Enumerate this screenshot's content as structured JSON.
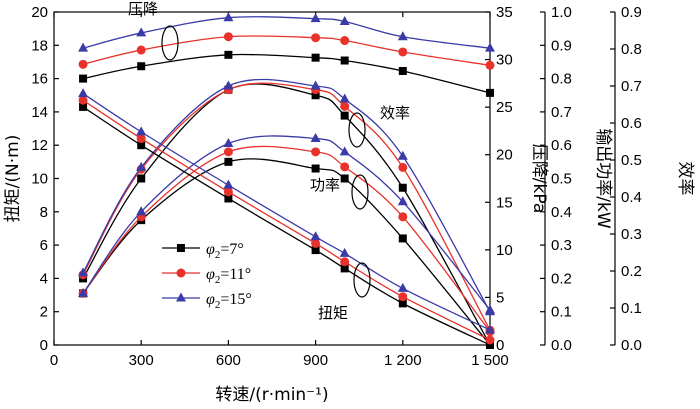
{
  "chart_data": {
    "type": "line",
    "x_axis": {
      "label": "转速/(r·min⁻¹)",
      "ticks": [
        0,
        300,
        600,
        900,
        1200,
        1500
      ],
      "tick_labels": [
        "0",
        "300",
        "600",
        "900",
        "1 200",
        "1 500"
      ],
      "range": [
        0,
        1500
      ]
    },
    "y_axes": [
      {
        "id": "torque",
        "label": "扭矩/(N·m)",
        "range": [
          0,
          20
        ],
        "ticks": [
          0,
          2,
          4,
          6,
          8,
          10,
          12,
          14,
          16,
          18,
          20
        ],
        "tick_labels": [
          "0",
          "2",
          "4",
          "6",
          "8",
          "10",
          "12",
          "14",
          "16",
          "18",
          "20"
        ]
      },
      {
        "id": "pressure",
        "label": "压降/kPa",
        "range": [
          0,
          35
        ],
        "ticks": [
          0,
          5,
          10,
          15,
          20,
          25,
          30,
          35
        ],
        "tick_labels": [
          "0",
          "5",
          "10",
          "15",
          "20",
          "25",
          "30",
          "35"
        ]
      },
      {
        "id": "power",
        "label": "输出功率/kW",
        "range": [
          0,
          1.0
        ],
        "ticks": [
          0,
          0.1,
          0.2,
          0.3,
          0.4,
          0.5,
          0.6,
          0.7,
          0.8,
          0.9,
          1.0
        ],
        "tick_labels": [
          "0.0",
          "0.1",
          "0.2",
          "0.3",
          "0.4",
          "0.5",
          "0.6",
          "0.7",
          "0.8",
          "0.9",
          "1.0"
        ]
      },
      {
        "id": "efficiency",
        "label": "效率",
        "range": [
          0,
          0.9
        ],
        "ticks": [
          0,
          0.1,
          0.2,
          0.3,
          0.4,
          0.5,
          0.6,
          0.7,
          0.8,
          0.9
        ],
        "tick_labels": [
          "0.0",
          "0.1",
          "0.2",
          "0.3",
          "0.4",
          "0.5",
          "0.6",
          "0.7",
          "0.8",
          "0.9"
        ]
      }
    ],
    "x": [
      100,
      300,
      600,
      900,
      1000,
      1200,
      1500
    ],
    "legend": {
      "entries": [
        {
          "symbol": "φ",
          "subscript": "2",
          "text": "=7°",
          "color": "#000000",
          "marker": "square"
        },
        {
          "symbol": "φ",
          "subscript": "2",
          "text": "=11°",
          "color": "#e8322b",
          "marker": "circle"
        },
        {
          "symbol": "φ",
          "subscript": "2",
          "text": "=15°",
          "color": "#3b3ba8",
          "marker": "triangle"
        }
      ]
    },
    "groups": [
      {
        "name": "压降",
        "axis": "pressure",
        "series": [
          {
            "legend_index": 0,
            "values": [
              28.0,
              29.3,
              30.5,
              30.2,
              29.9,
              28.8,
              26.5
            ]
          },
          {
            "legend_index": 1,
            "values": [
              29.5,
              31.0,
              32.4,
              32.3,
              32.0,
              30.8,
              29.4
            ]
          },
          {
            "legend_index": 2,
            "values": [
              31.2,
              32.8,
              34.4,
              34.3,
              34.0,
              32.4,
              31.2
            ]
          }
        ]
      },
      {
        "name": "效率",
        "axis": "efficiency",
        "series": [
          {
            "legend_index": 0,
            "values": [
              0.18,
              0.45,
              0.69,
              0.675,
              0.62,
              0.425,
              0.0
            ]
          },
          {
            "legend_index": 1,
            "values": [
              0.19,
              0.475,
              0.69,
              0.69,
              0.645,
              0.48,
              0.04
            ]
          },
          {
            "legend_index": 2,
            "values": [
              0.195,
              0.48,
              0.7,
              0.7,
              0.665,
              0.51,
              0.09
            ]
          }
        ]
      },
      {
        "name": "功率",
        "axis": "power",
        "series": [
          {
            "legend_index": 0,
            "values": [
              0.155,
              0.375,
              0.55,
              0.53,
              0.5,
              0.32,
              0.0
            ]
          },
          {
            "legend_index": 1,
            "values": [
              0.155,
              0.385,
              0.58,
              0.58,
              0.535,
              0.385,
              0.04
            ]
          },
          {
            "legend_index": 2,
            "values": [
              0.155,
              0.4,
              0.605,
              0.62,
              0.58,
              0.43,
              0.105
            ]
          }
        ]
      },
      {
        "name": "扭矩",
        "axis": "torque",
        "series": [
          {
            "legend_index": 0,
            "values": [
              14.3,
              12.0,
              8.8,
              5.7,
              4.6,
              2.5,
              0.0
            ]
          },
          {
            "legend_index": 1,
            "values": [
              14.7,
              12.4,
              9.2,
              6.1,
              5.0,
              2.9,
              0.3
            ]
          },
          {
            "legend_index": 2,
            "values": [
              15.1,
              12.8,
              9.6,
              6.5,
              5.5,
              3.4,
              0.9
            ]
          }
        ]
      }
    ],
    "annotations": [
      {
        "text": "压降",
        "group": "压降"
      },
      {
        "text": "效率",
        "group": "效率"
      },
      {
        "text": "功率",
        "group": "功率"
      },
      {
        "text": "扭矩",
        "group": "扭矩"
      }
    ]
  }
}
